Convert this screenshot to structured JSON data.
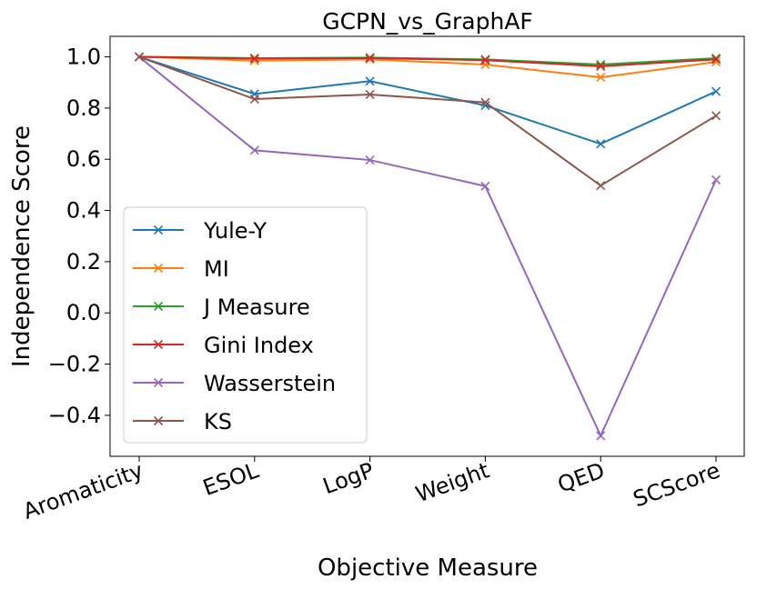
{
  "chart_data": {
    "type": "line",
    "title": "GCPN_vs_GraphAF",
    "xlabel": "Objective Measure",
    "ylabel": "Independence Score",
    "categories": [
      "Aromaticity",
      "ESOL",
      "LogP",
      "Weight",
      "QED",
      "SCScore"
    ],
    "ylim": [
      -0.56,
      1.08
    ],
    "yticks": [
      1.0,
      0.8,
      0.6,
      0.4,
      0.2,
      0.0,
      -0.2,
      -0.4
    ],
    "ytick_labels": [
      "1.0",
      "0.8",
      "0.6",
      "0.4",
      "0.2",
      "0.0",
      "−0.2",
      "−0.4"
    ],
    "grid": false,
    "legend_position": "lower-left",
    "marker": "x",
    "series": [
      {
        "name": "Yule-Y",
        "color": "#1f77b4",
        "values": [
          1.0,
          0.855,
          0.905,
          0.81,
          0.66,
          0.865
        ]
      },
      {
        "name": "MI",
        "color": "#ff7f0e",
        "values": [
          1.0,
          0.985,
          0.99,
          0.97,
          0.92,
          0.98
        ]
      },
      {
        "name": "J Measure",
        "color": "#2ca02c",
        "values": [
          1.0,
          0.995,
          0.997,
          0.99,
          0.97,
          0.995
        ]
      },
      {
        "name": "Gini Index",
        "color": "#d62728",
        "values": [
          1.0,
          0.993,
          0.995,
          0.987,
          0.963,
          0.99
        ]
      },
      {
        "name": "Wasserstein",
        "color": "#9467bd",
        "values": [
          1.0,
          0.635,
          0.597,
          0.495,
          -0.48,
          0.52
        ]
      },
      {
        "name": "KS",
        "color": "#8c564b",
        "values": [
          1.0,
          0.835,
          0.853,
          0.822,
          0.497,
          0.77
        ]
      }
    ]
  }
}
